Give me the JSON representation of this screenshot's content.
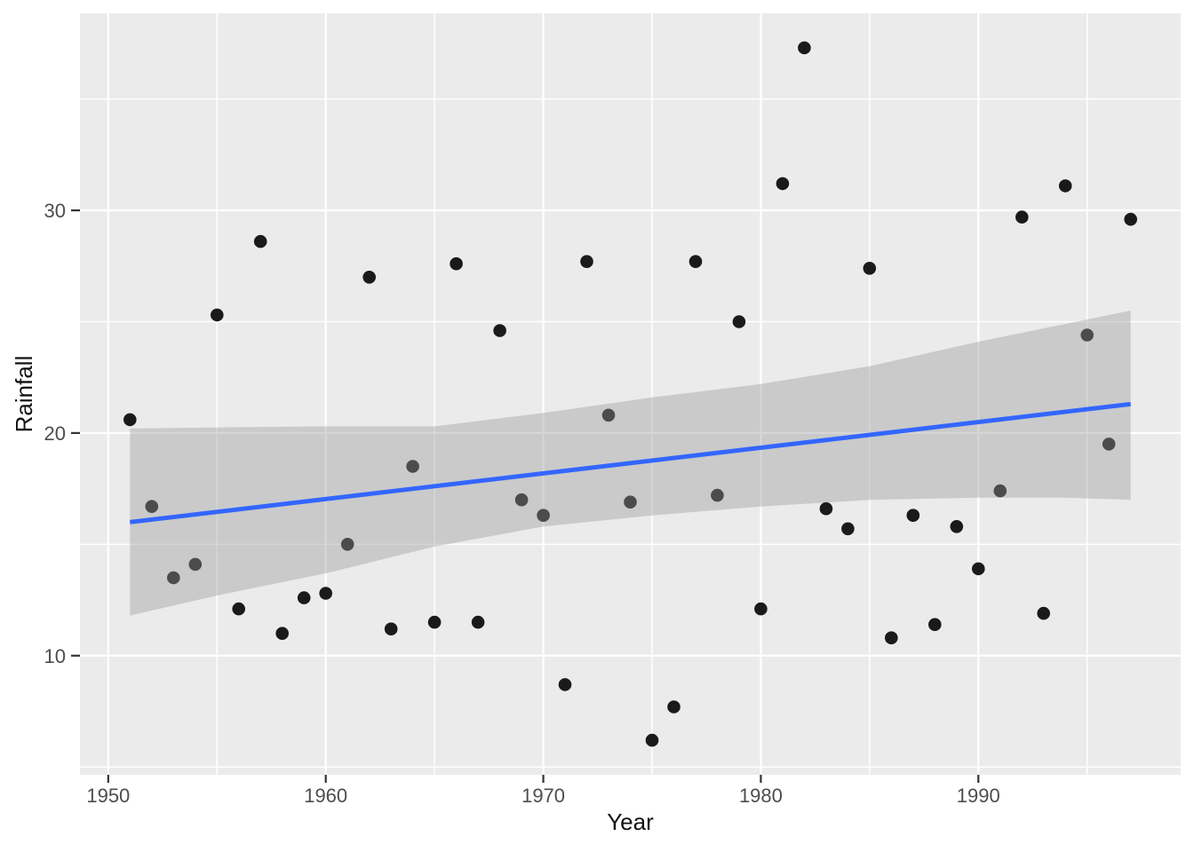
{
  "chart_data": {
    "type": "scatter",
    "title": "",
    "xlabel": "Year",
    "ylabel": "Rainfall",
    "x": [
      1951,
      1952,
      1953,
      1954,
      1955,
      1956,
      1957,
      1958,
      1959,
      1960,
      1961,
      1962,
      1963,
      1964,
      1965,
      1966,
      1967,
      1968,
      1969,
      1970,
      1971,
      1972,
      1973,
      1974,
      1975,
      1976,
      1977,
      1978,
      1979,
      1980,
      1981,
      1982,
      1983,
      1984,
      1985,
      1986,
      1987,
      1988,
      1989,
      1990,
      1991,
      1992,
      1993,
      1994,
      1995,
      1996,
      1997
    ],
    "y": [
      20.6,
      16.7,
      13.5,
      14.1,
      25.3,
      12.1,
      28.6,
      11.0,
      12.6,
      12.8,
      15.0,
      27.0,
      11.2,
      18.5,
      11.5,
      27.6,
      11.5,
      24.6,
      17.0,
      16.3,
      8.7,
      27.7,
      20.8,
      16.9,
      6.2,
      7.7,
      27.7,
      17.2,
      25.0,
      12.1,
      31.2,
      37.3,
      16.6,
      15.7,
      27.4,
      10.8,
      16.3,
      11.4,
      15.8,
      13.9,
      17.4,
      29.7,
      11.9,
      31.1,
      24.4,
      19.5,
      29.6
    ],
    "xlim": [
      1948.7,
      1999.3
    ],
    "ylim": [
      4.65,
      38.85
    ],
    "x_major_ticks": [
      1950,
      1960,
      1970,
      1980,
      1990
    ],
    "x_minor_ticks": [
      1955,
      1965,
      1975,
      1985,
      1995
    ],
    "y_major_ticks": [
      10,
      20,
      30
    ],
    "y_minor_ticks": [
      5,
      15,
      25,
      35
    ],
    "x_tick_labels": [
      "1950",
      "1960",
      "1970",
      "1980",
      "1990"
    ],
    "y_tick_labels": [
      "10",
      "20",
      "30"
    ],
    "grid": true,
    "legend": false,
    "theme": "ggplot-grey",
    "smooth": {
      "type": "linear",
      "x": [
        1951,
        1997
      ],
      "y": [
        16.0,
        21.3
      ]
    },
    "ci_band": {
      "x": [
        1951,
        1955,
        1960,
        1965,
        1970,
        1975,
        1980,
        1985,
        1990,
        1994,
        1997
      ],
      "upper": [
        20.2,
        20.25,
        20.3,
        20.3,
        20.9,
        21.6,
        22.2,
        23.0,
        24.1,
        24.9,
        25.5
      ],
      "lower": [
        11.8,
        12.7,
        13.7,
        14.9,
        15.8,
        16.3,
        16.7,
        17.0,
        17.1,
        17.1,
        17.0
      ]
    }
  },
  "colors": {
    "panel_background": "#EBEBEB",
    "gridline": "#FFFFFF",
    "point": "#1A1A1A",
    "ribbon_fill": "#999999",
    "ribbon_opacity": 0.4,
    "smooth_line": "#3366FF",
    "tick_mark": "#333333",
    "tick_label": "#4D4D4D",
    "axis_title": "#111111"
  }
}
